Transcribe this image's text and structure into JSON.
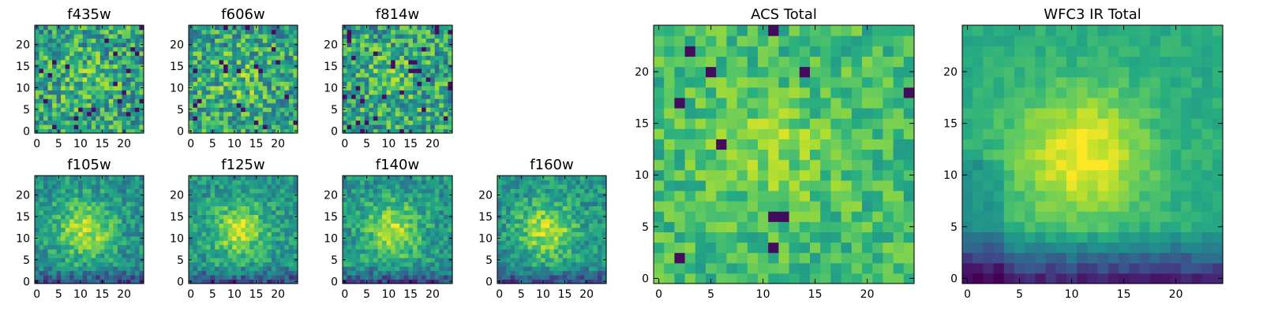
{
  "chart_data": [
    {
      "type": "heatmap",
      "title": "f435w",
      "xticks": [
        "0",
        "5",
        "10",
        "15",
        "20"
      ],
      "yticks": [
        "0",
        "5",
        "10",
        "15",
        "20"
      ],
      "xlim": [
        0,
        25
      ],
      "ylim": [
        0,
        25
      ],
      "grid": false,
      "colormap": "viridis",
      "pixels": 25
    },
    {
      "type": "heatmap",
      "title": "f606w",
      "xticks": [
        "0",
        "5",
        "10",
        "15",
        "20"
      ],
      "yticks": [
        "0",
        "5",
        "10",
        "15",
        "20"
      ],
      "xlim": [
        0,
        25
      ],
      "ylim": [
        0,
        25
      ],
      "grid": false,
      "colormap": "viridis",
      "pixels": 25
    },
    {
      "type": "heatmap",
      "title": "f814w",
      "xticks": [
        "0",
        "5",
        "10",
        "15",
        "20"
      ],
      "yticks": [
        "0",
        "5",
        "10",
        "15",
        "20"
      ],
      "xlim": [
        0,
        25
      ],
      "ylim": [
        0,
        25
      ],
      "grid": false,
      "colormap": "viridis",
      "pixels": 25
    },
    {
      "type": "heatmap",
      "title": "f105w",
      "xticks": [
        "0",
        "5",
        "10",
        "15",
        "20"
      ],
      "yticks": [
        "0",
        "5",
        "10",
        "15",
        "20"
      ],
      "xlim": [
        0,
        25
      ],
      "ylim": [
        0,
        25
      ],
      "grid": false,
      "colormap": "viridis",
      "pixels": 25
    },
    {
      "type": "heatmap",
      "title": "f125w",
      "xticks": [
        "0",
        "5",
        "10",
        "15",
        "20"
      ],
      "yticks": [
        "0",
        "5",
        "10",
        "15",
        "20"
      ],
      "xlim": [
        0,
        25
      ],
      "ylim": [
        0,
        25
      ],
      "grid": false,
      "colormap": "viridis",
      "pixels": 25
    },
    {
      "type": "heatmap",
      "title": "f140w",
      "xticks": [
        "0",
        "5",
        "10",
        "15",
        "20"
      ],
      "yticks": [
        "0",
        "5",
        "10",
        "15",
        "20"
      ],
      "xlim": [
        0,
        25
      ],
      "ylim": [
        0,
        25
      ],
      "grid": false,
      "colormap": "viridis",
      "pixels": 25
    },
    {
      "type": "heatmap",
      "title": "f160w",
      "xticks": [
        "0",
        "5",
        "10",
        "15",
        "20"
      ],
      "yticks": [
        "0",
        "5",
        "10",
        "15",
        "20"
      ],
      "xlim": [
        0,
        25
      ],
      "ylim": [
        0,
        25
      ],
      "grid": false,
      "colormap": "viridis",
      "pixels": 25
    },
    {
      "type": "heatmap",
      "title": "ACS Total",
      "xticks": [
        "0",
        "5",
        "10",
        "15",
        "20"
      ],
      "yticks": [
        "0",
        "5",
        "10",
        "15",
        "20"
      ],
      "xlim": [
        0,
        25
      ],
      "ylim": [
        0,
        25
      ],
      "grid": false,
      "colormap": "viridis",
      "pixels": 25
    },
    {
      "type": "heatmap",
      "title": "WFC3 IR Total",
      "xticks": [
        "0",
        "5",
        "10",
        "15",
        "20"
      ],
      "yticks": [
        "0",
        "5",
        "10",
        "15",
        "20"
      ],
      "xlim": [
        0,
        25
      ],
      "ylim": [
        0,
        25
      ],
      "grid": false,
      "colormap": "viridis",
      "pixels": 25
    }
  ]
}
